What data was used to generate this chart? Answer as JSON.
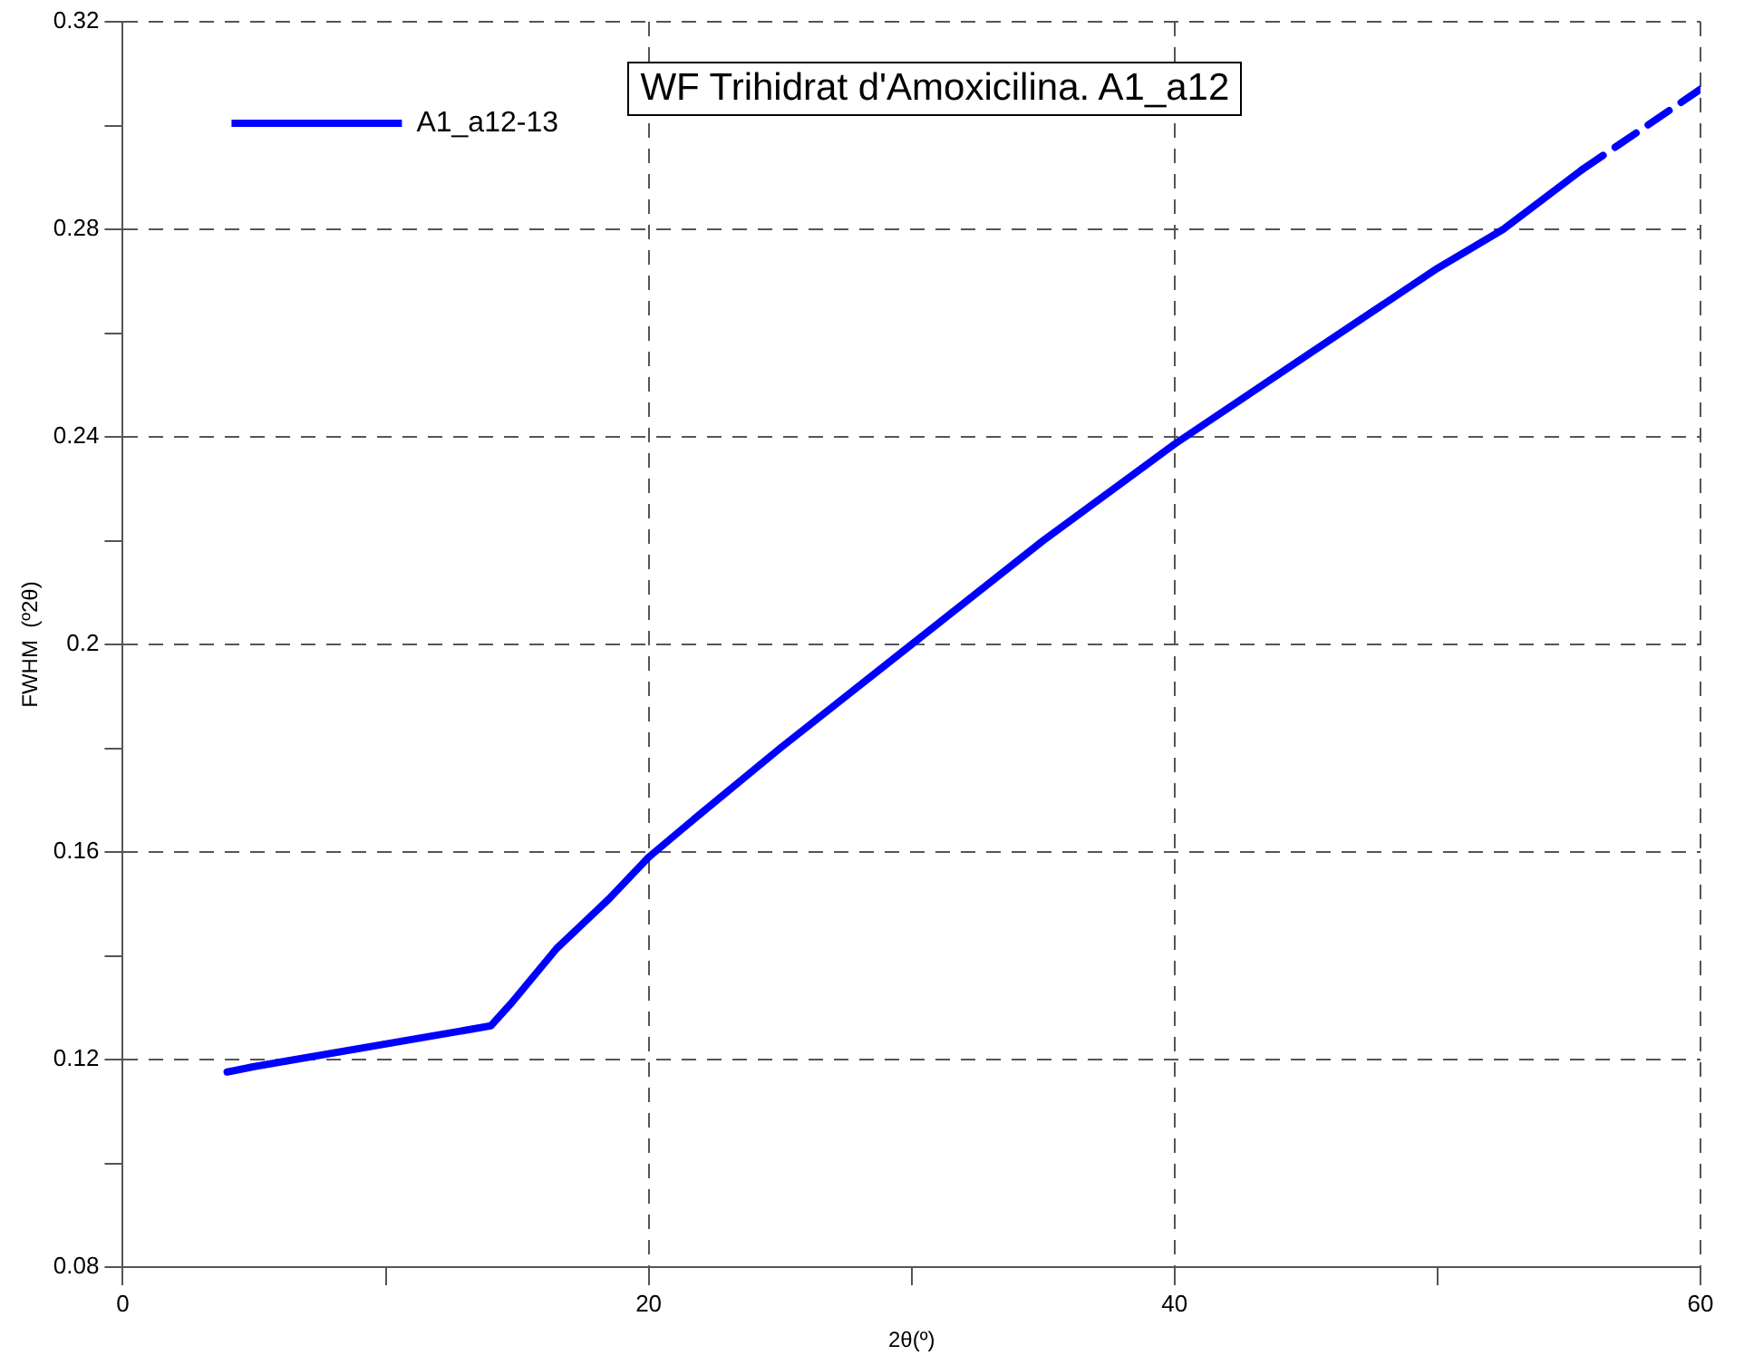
{
  "chart_data": {
    "type": "line",
    "title": "WF Trihidrat d'Amoxicilina. A1_a12",
    "xlabel": "2θ(º)",
    "ylabel": "FWHM  (º2θ)",
    "series": [
      {
        "name": "A1_a12-13",
        "color": "#0000ff",
        "line_style": "solid",
        "x": [
          4.95,
          14.0,
          14.8,
          16.5,
          18.5,
          20,
          22,
          25,
          30,
          35,
          40,
          45,
          50,
          52.5,
          55.5
        ],
        "values": [
          0.1186,
          0.1265,
          0.131,
          0.1414,
          0.151,
          0.159,
          0.1675,
          0.18,
          0.2,
          0.22,
          0.2386,
          0.2556,
          0.2725,
          0.28,
          0.2915
        ]
      },
      {
        "color": "#0000ff",
        "line_style": "dashed",
        "x": [
          3.97,
          4.95,
          30,
          55.5,
          60
        ],
        "values": [
          0.1176,
          0.1186,
          null,
          0.2915,
          0.307
        ]
      }
    ],
    "xlim": [
      0,
      60
    ],
    "xticks": [
      0,
      {
        "value": 10,
        "label": null
      },
      20,
      {
        "value": 30,
        "label": null
      },
      40,
      {
        "value": 50,
        "label": null
      },
      60
    ],
    "ylim": [
      0.08,
      0.32
    ],
    "yticks": [
      0.08,
      {
        "value": 0.1,
        "label": null
      },
      0.12,
      {
        "value": 0.14,
        "label": null
      },
      0.16,
      {
        "value": 0.18,
        "label": null
      },
      0.2,
      {
        "value": 0.22,
        "label": null
      },
      0.24,
      {
        "value": 0.26,
        "label": null
      },
      0.28,
      {
        "value": 0.3,
        "label": null
      },
      0.32
    ],
    "grid": true,
    "legend": "top left",
    "marker": "none"
  }
}
